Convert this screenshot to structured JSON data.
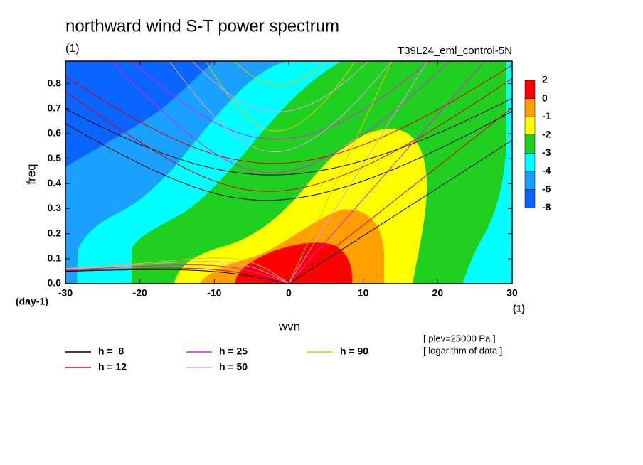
{
  "chart_data": {
    "type": "contour",
    "title": "northward wind S-T power spectrum",
    "subtitle": "(1)",
    "run_label": "T39L24_eml_control-5N",
    "x_label": "wvn",
    "y_label": "freq",
    "y_unit_label": "(day-1)",
    "x_unit_label": "(1)",
    "xlim": [
      -30,
      30
    ],
    "ylim": [
      0,
      0.89
    ],
    "xticks": [
      -30,
      -20,
      -10,
      0,
      10,
      20,
      30
    ],
    "yticks": [
      {
        "value": 0,
        "label": "0.0"
      },
      0.1,
      0.2,
      0.3,
      0.4,
      0.5,
      0.6,
      0.7,
      0.8
    ],
    "colorbar": {
      "levels": [
        2,
        0,
        -1,
        -2,
        -3,
        -4,
        -6,
        -8
      ],
      "colors": [
        "#ff0000",
        "#ffa000",
        "#ffff00",
        "#20d020",
        "#00ffff",
        "#1aa0ff",
        "#0a64ff"
      ]
    },
    "series": [
      {
        "name": "h =  8",
        "h": 8,
        "color": "#000000"
      },
      {
        "name": "h = 12",
        "h": 12,
        "color": "#e00000"
      },
      {
        "name": "h = 25",
        "h": 25,
        "color": "#e020e0"
      },
      {
        "name": "h = 50",
        "h": 50,
        "color": "#e0a0e0"
      },
      {
        "name": "h = 90",
        "h": 90,
        "color": "#e8c000"
      }
    ],
    "notes": [
      "[ plev=25000 Pa ]",
      "[ logarithm of data ]"
    ]
  }
}
